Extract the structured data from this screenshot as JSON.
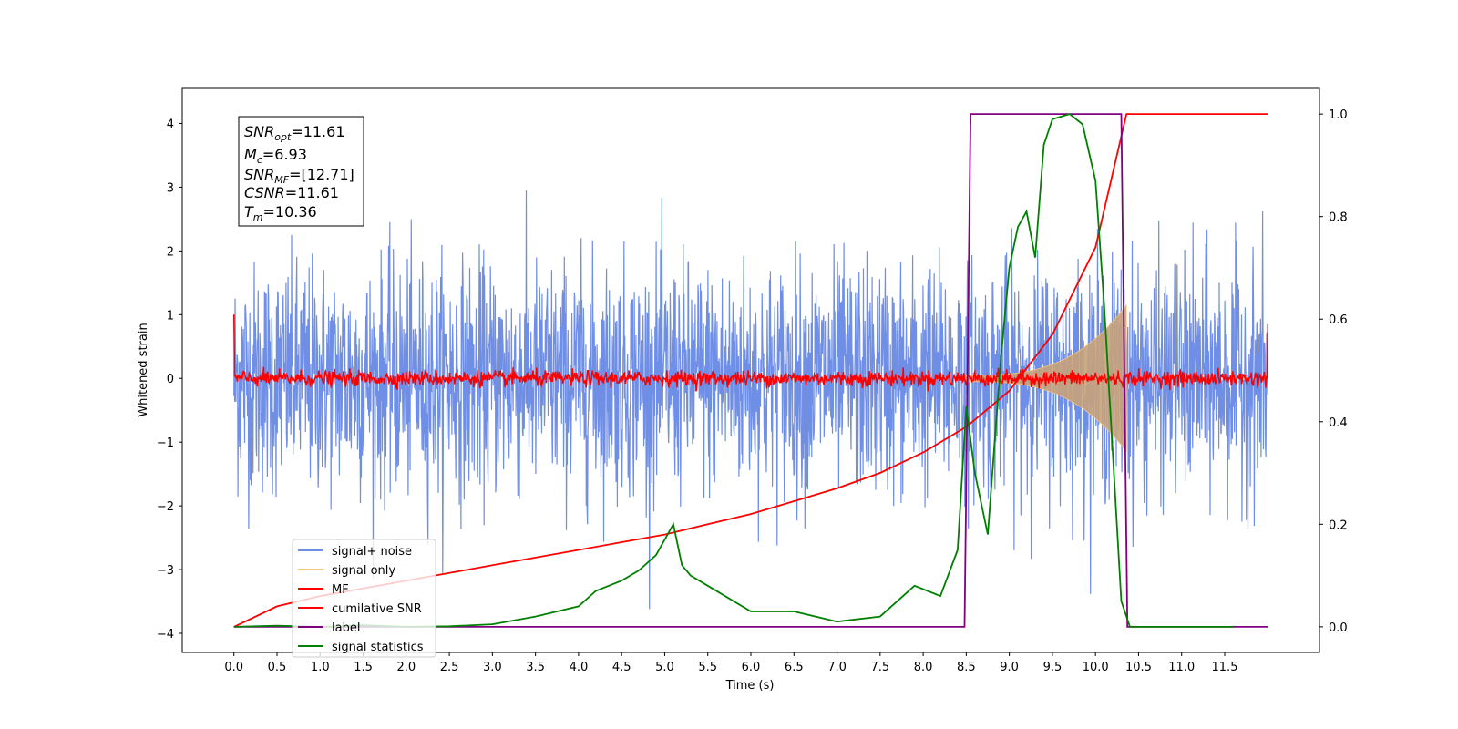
{
  "chart_data": {
    "type": "line",
    "title": "",
    "xlabel": "Time (s)",
    "ylabel": "Whitened strain",
    "xlim": [
      -0.6,
      12.6
    ],
    "ylim": [
      -4.3,
      4.55
    ],
    "ylim_right": [
      -0.05,
      1.05
    ],
    "x_ticks": [
      "0.0",
      "0.5",
      "1.0",
      "1.5",
      "2.0",
      "2.5",
      "3.0",
      "3.5",
      "4.0",
      "4.5",
      "5.0",
      "5.5",
      "6.0",
      "6.5",
      "7.0",
      "7.5",
      "8.0",
      "8.5",
      "9.0",
      "9.5",
      "10.0",
      "10.5",
      "11.0",
      "11.5"
    ],
    "y_ticks_left": [
      "4",
      "3",
      "2",
      "1",
      "0",
      "−1",
      "−2",
      "−3",
      "−4"
    ],
    "y_ticks_right": [
      "1.0",
      "0.8",
      "0.6",
      "0.4",
      "0.2",
      "0.0"
    ],
    "grid": false,
    "legend_position": "lower-left",
    "stats_box": {
      "snr_opt": {
        "sym": "SNR",
        "sub": "opt",
        "value": "=11.61"
      },
      "mc": {
        "sym": "M",
        "sub": "c",
        "value": "=6.93"
      },
      "snr_mf": {
        "sym": "SNR",
        "sub": "MF",
        "value": "=[12.71]"
      },
      "csnr": {
        "sym": "CSNR",
        "sub": "",
        "value": "=11.61"
      },
      "tm": {
        "sym": "T",
        "sub": "m",
        "value": "=10.36"
      }
    },
    "series": [
      {
        "name": "signal+ noise",
        "color": "#6f8ee6",
        "axis": "left",
        "noise_std": 0.9,
        "t_start": 0.0,
        "t_end": 12.0
      },
      {
        "name": "signal only",
        "color": "#f5c77b",
        "axis": "left",
        "chirp_start": 8.5,
        "chirp_end": 10.36,
        "max_amplitude": 1.1
      },
      {
        "name": "MF",
        "color": "#ff0000",
        "axis": "left",
        "t_start": 0.0,
        "t_end": 12.0,
        "level": 0.0
      },
      {
        "name": "cumilative SNR",
        "color": "#ff0000",
        "axis": "right",
        "x": [
          0.0,
          0.5,
          1.0,
          1.5,
          2.0,
          2.5,
          3.0,
          3.5,
          4.0,
          4.5,
          5.0,
          5.5,
          6.0,
          6.5,
          7.0,
          7.5,
          8.0,
          8.5,
          9.0,
          9.5,
          10.0,
          10.36,
          12.0
        ],
        "values": [
          0.0,
          0.04,
          0.06,
          0.075,
          0.09,
          0.105,
          0.12,
          0.135,
          0.15,
          0.165,
          0.18,
          0.2,
          0.22,
          0.245,
          0.27,
          0.3,
          0.34,
          0.39,
          0.46,
          0.57,
          0.74,
          1.0,
          1.0
        ]
      },
      {
        "name": "label",
        "color": "#800080",
        "axis": "right",
        "x": [
          0.0,
          8.48,
          8.55,
          10.3,
          10.37,
          12.0
        ],
        "values": [
          0.0,
          0.0,
          1.0,
          1.0,
          0.0,
          0.0
        ]
      },
      {
        "name": "signal statistics",
        "color": "#008000",
        "axis": "right",
        "x": [
          0.0,
          0.5,
          1.0,
          1.5,
          2.0,
          2.5,
          3.0,
          3.5,
          4.0,
          4.2,
          4.5,
          4.7,
          4.9,
          5.1,
          5.2,
          5.3,
          5.5,
          6.0,
          6.5,
          7.0,
          7.5,
          7.9,
          8.2,
          8.4,
          8.5,
          8.6,
          8.75,
          8.9,
          9.0,
          9.1,
          9.2,
          9.3,
          9.4,
          9.5,
          9.7,
          9.85,
          10.0,
          10.1,
          10.2,
          10.3,
          10.4,
          11.0,
          11.6
        ],
        "values": [
          0.0,
          0.002,
          0.0,
          0.003,
          0.0,
          0.001,
          0.005,
          0.02,
          0.04,
          0.07,
          0.09,
          0.11,
          0.14,
          0.2,
          0.12,
          0.1,
          0.08,
          0.03,
          0.03,
          0.01,
          0.02,
          0.08,
          0.06,
          0.15,
          0.43,
          0.3,
          0.18,
          0.52,
          0.7,
          0.78,
          0.81,
          0.72,
          0.94,
          0.99,
          1.0,
          0.98,
          0.87,
          0.63,
          0.34,
          0.05,
          0.0,
          0.0,
          0.0
        ]
      }
    ]
  }
}
